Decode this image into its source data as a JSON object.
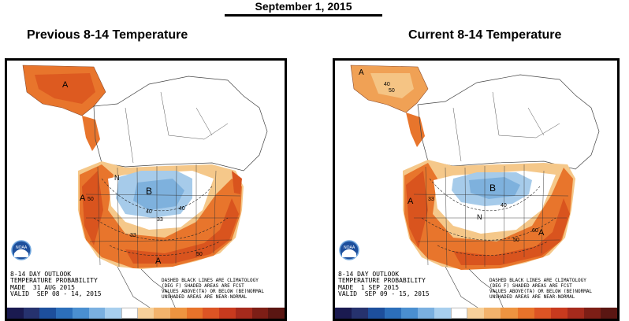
{
  "header": {
    "date": "September 1, 2015",
    "left_title": "Previous 8-14 Temperature",
    "right_title": "Current 8-14 Temperature"
  },
  "left_map": {
    "outlook_lines": [
      "8-14 DAY OUTLOOK",
      "TEMPERATURE PROBABILITY",
      "MADE  31 AUG 2015",
      "VALID  SEP 08 - 14, 2015"
    ],
    "notes_lines": [
      "DASHED BLACK LINES ARE CLIMATOLOGY",
      "(DEG F) SHADED AREAS ARE FCST",
      "VALUES ABOVE(TA) OR BELOW (BE)NORMAL",
      "UNSHADED AREAS ARE NEAR-NORMAL"
    ],
    "labels": {
      "a1": "A",
      "a2": "A",
      "a3": "A",
      "b": "B",
      "n": "N",
      "c40a": "40",
      "c33a": "33",
      "c40b": "40",
      "c50a": "50",
      "c33b": "33",
      "c50b": "50"
    },
    "logo_text": "NOAA"
  },
  "right_map": {
    "outlook_lines": [
      "8-14 DAY OUTLOOK",
      "TEMPERATURE PROBABILITY",
      "MADE  1 SEP 2015",
      "VALID  SEP 09 - 15, 2015"
    ],
    "notes_lines": [
      "DASHED BLACK LINES ARE CLIMATOLOGY",
      "(DEG F) SHADED AREAS ARE FCST",
      "VALUES ABOVE(TA) OR BELOW (BE)NORMAL",
      "UNSHADED AREAS ARE NEAR-NORMAL"
    ],
    "labels": {
      "a1": "A",
      "a2": "A",
      "a3": "A",
      "b": "B",
      "n": "N",
      "c40a": "40",
      "c50a": "50",
      "c40b": "40",
      "c50b": "50",
      "c60": "60",
      "c33": "33"
    },
    "logo_text": "NOAA"
  },
  "colors": {
    "scale": [
      "#1a1a50",
      "#26326e",
      "#1d4f9c",
      "#2c6fba",
      "#4a8fd0",
      "#7ab0e0",
      "#a8cfee",
      "#ffffff",
      "#f6d09a",
      "#f2b36c",
      "#ee9440",
      "#e8732a",
      "#dc5424",
      "#c83a1e",
      "#a52a1c",
      "#7d1e16",
      "#5a1612"
    ],
    "above": [
      "#f5c88a",
      "#f0a155",
      "#e8752c",
      "#d9541e"
    ],
    "below": [
      "#a6cbea",
      "#7eb1dd"
    ]
  }
}
